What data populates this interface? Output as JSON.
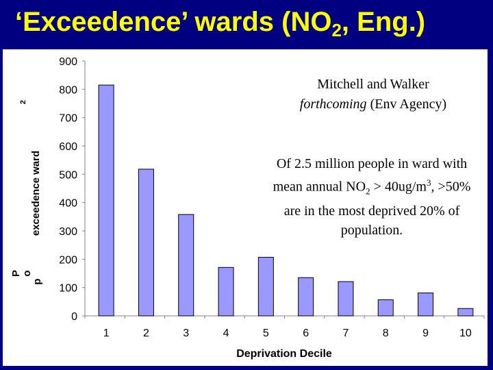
{
  "title": {
    "prefix": "‘Exceedence’ wards (NO",
    "sub": "2",
    "suffix": ", Eng.)"
  },
  "annotation1": {
    "line1": "Mitchell and Walker",
    "line2_italic": "forthcoming",
    "line2_rest": " (Env Agency)"
  },
  "annotation2": {
    "a": "Of 2.5 million people in ward with mean annual NO",
    "a_sub": "2",
    "b": " > 40ug/m",
    "b_sup": "3",
    "c": ", >50% are in the most deprived 20% of population."
  },
  "colors": {
    "title": "#ffff00",
    "background": "#000080",
    "bar_fill": "#9999ff",
    "bar_stroke": "#000000"
  },
  "chart_data": {
    "type": "bar",
    "categories": [
      "1",
      "2",
      "3",
      "4",
      "5",
      "6",
      "7",
      "8",
      "9",
      "10"
    ],
    "values": [
      815,
      518,
      358,
      171,
      207,
      135,
      121,
      57,
      81,
      26
    ],
    "xlabel": "Deprivation Decile",
    "ylabel_text": "exceedence ward",
    "ylabel_fragments": [
      "2",
      "P",
      "o",
      "p"
    ],
    "ylim": [
      0,
      900
    ],
    "yticks": [
      0,
      100,
      200,
      300,
      400,
      500,
      600,
      700,
      800,
      900
    ],
    "grid": false,
    "legend": "none"
  }
}
